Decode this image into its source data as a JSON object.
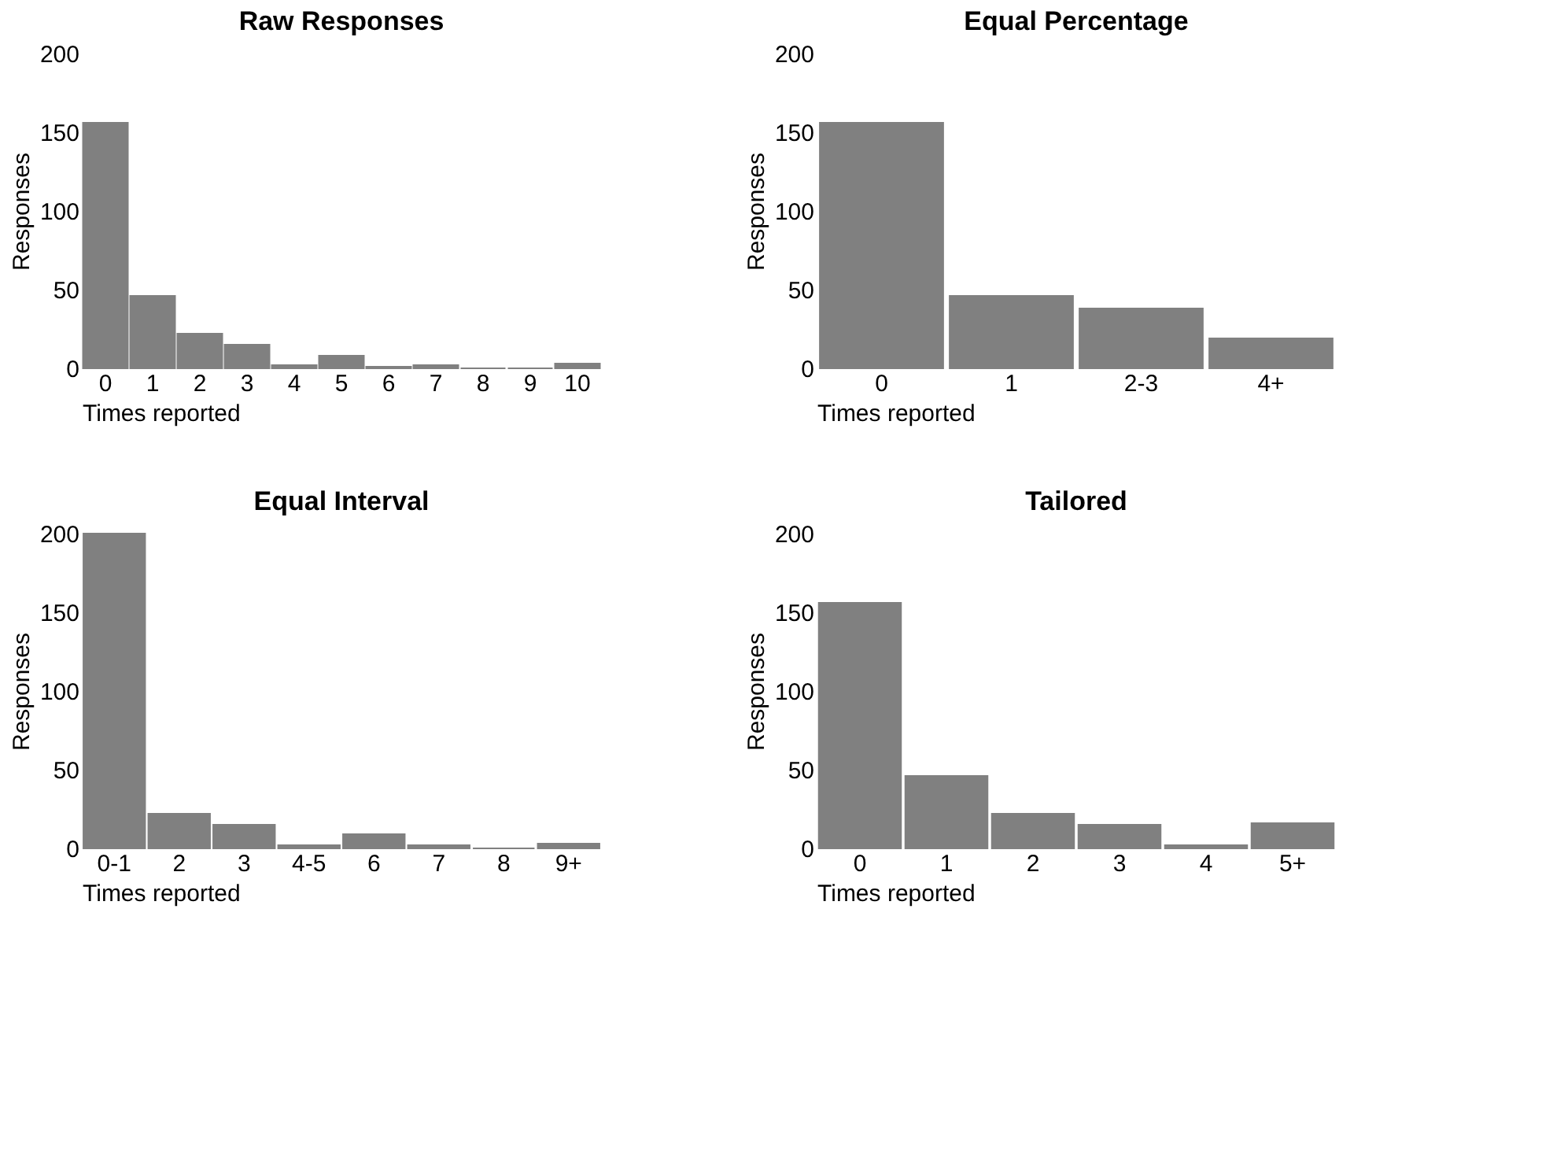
{
  "chart_data": [
    {
      "type": "bar",
      "title": "Raw Responses",
      "xlabel": "Times reported",
      "ylabel": "Responses",
      "categories": [
        "0",
        "1",
        "2",
        "3",
        "4",
        "5",
        "6",
        "7",
        "8",
        "9",
        "10"
      ],
      "values": [
        156,
        46,
        22,
        15,
        2,
        8,
        1,
        2,
        0,
        0,
        3
      ],
      "color": "#808080",
      "ylim": [
        0,
        200
      ],
      "yticks": [
        0,
        50,
        100,
        150,
        200
      ]
    },
    {
      "type": "bar",
      "title": "Equal Percentage",
      "xlabel": "Times reported",
      "ylabel": "Responses",
      "categories": [
        "0",
        "1",
        "2-3",
        "4+"
      ],
      "values": [
        156,
        46,
        38,
        19
      ],
      "color": "#808080",
      "ylim": [
        0,
        200
      ],
      "yticks": [
        0,
        50,
        100,
        150,
        200
      ]
    },
    {
      "type": "bar",
      "title": "Equal Interval",
      "xlabel": "Times reported",
      "ylabel": "Responses",
      "categories": [
        "0-1",
        "2",
        "3",
        "4-5",
        "6",
        "7",
        "8",
        "9+"
      ],
      "values": [
        200,
        22,
        15,
        2,
        9,
        2,
        0,
        3
      ],
      "color": "#808080",
      "ylim": [
        0,
        200
      ],
      "yticks": [
        0,
        50,
        100,
        150,
        200
      ]
    },
    {
      "type": "bar",
      "title": "Tailored",
      "xlabel": "Times reported",
      "ylabel": "Responses",
      "categories": [
        "0",
        "1",
        "2",
        "3",
        "4",
        "5+"
      ],
      "values": [
        156,
        46,
        22,
        15,
        2,
        16
      ],
      "color": "#808080",
      "ylim": [
        0,
        200
      ],
      "yticks": [
        0,
        50,
        100,
        150,
        200
      ]
    }
  ]
}
